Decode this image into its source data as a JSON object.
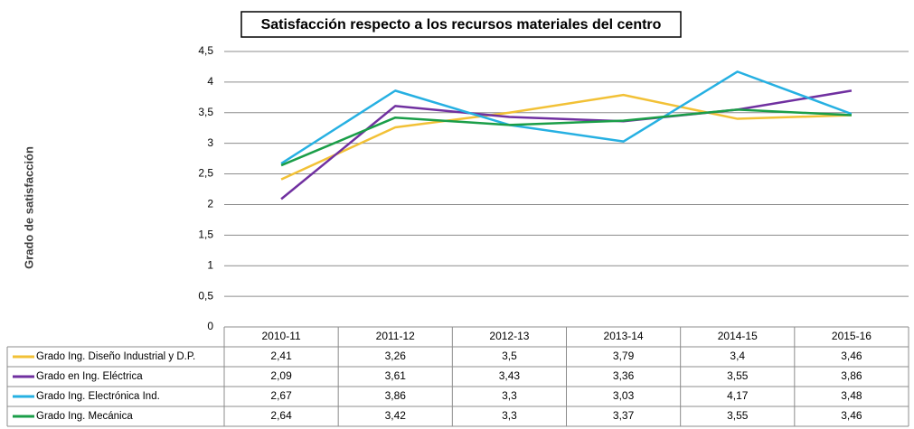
{
  "chart_data": {
    "type": "line",
    "title": "Satisfacción respecto a los recursos materiales del centro",
    "y_label": "Grado de satisfacción",
    "categories": [
      "2010-11",
      "2011-12",
      "2012-13",
      "2013-14",
      "2014-15",
      "2015-16"
    ],
    "series": [
      {
        "name": "Grado Ing. Diseño Industrial y D.P.",
        "color": "#f2c136",
        "values": [
          2.41,
          3.26,
          3.5,
          3.79,
          3.4,
          3.46
        ],
        "value_labels": [
          "2,41",
          "3,26",
          "3,5",
          "3,79",
          "3,4",
          "3,46"
        ]
      },
      {
        "name": "Grado en Ing. Eléctrica",
        "color": "#7030a0",
        "values": [
          2.09,
          3.61,
          3.43,
          3.36,
          3.55,
          3.86
        ],
        "value_labels": [
          "2,09",
          "3,61",
          "3,43",
          "3,36",
          "3,55",
          "3,86"
        ]
      },
      {
        "name": "Grado Ing. Electrónica Ind.",
        "color": "#26b0e2",
        "values": [
          2.67,
          3.86,
          3.3,
          3.03,
          4.17,
          3.48
        ],
        "value_labels": [
          "2,67",
          "3,86",
          "3,3",
          "3,03",
          "4,17",
          "3,48"
        ]
      },
      {
        "name": "Grado Ing. Mecánica",
        "color": "#1a9e48",
        "values": [
          2.64,
          3.42,
          3.3,
          3.37,
          3.55,
          3.46
        ],
        "value_labels": [
          "2,64",
          "3,42",
          "3,3",
          "3,37",
          "3,55",
          "3,46"
        ]
      }
    ],
    "ylim": [
      0,
      4.5
    ],
    "yticks": [
      0,
      {
        "value": 0.5,
        "label": "0,5"
      },
      1,
      {
        "value": 1.5,
        "label": "1,5"
      },
      2,
      {
        "value": 2.5,
        "label": "2,5"
      },
      3,
      {
        "value": 3.5,
        "label": "3,5"
      },
      4,
      {
        "value": 4.5,
        "label": "4,5"
      }
    ],
    "grid": true
  }
}
